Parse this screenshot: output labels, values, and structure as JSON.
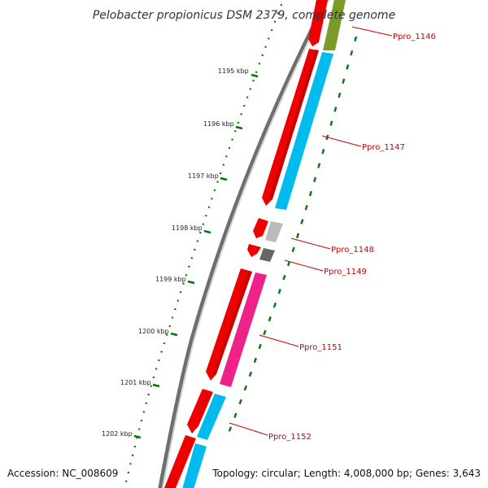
{
  "title": "Pelobacter propionicus DSM 2379, complete genome",
  "footer": {
    "accession": "Accession: NC_008609",
    "summary": "Topology: circular; Length: 4,008,000 bp; Genes: 3,643"
  },
  "scale_ticks": [
    {
      "label": "1195 kbp"
    },
    {
      "label": "1196 kbp"
    },
    {
      "label": "1197 kbp"
    },
    {
      "label": "1198 kbp"
    },
    {
      "label": "1199 kbp"
    },
    {
      "label": "1200 kbp"
    },
    {
      "label": "1201 kbp"
    },
    {
      "label": "1202 kbp"
    }
  ],
  "gene_labels": [
    {
      "text": "Ppro_1146"
    },
    {
      "text": "Ppro_1147"
    },
    {
      "text": "Ppro_1148"
    },
    {
      "text": "Ppro_1149"
    },
    {
      "text": "Ppro_1151"
    },
    {
      "text": "Ppro_1152"
    }
  ],
  "colors": {
    "backbone": "#7a7a7a",
    "cds": "#ee0000",
    "cog_cyan": "#00bbee",
    "cog_pink": "#ee2288",
    "cog_olive": "#7a9a2a",
    "cog_gray": "#bbbbbb",
    "cog_darkgray": "#666666",
    "tick": "#007700",
    "label": "#cc0000"
  }
}
